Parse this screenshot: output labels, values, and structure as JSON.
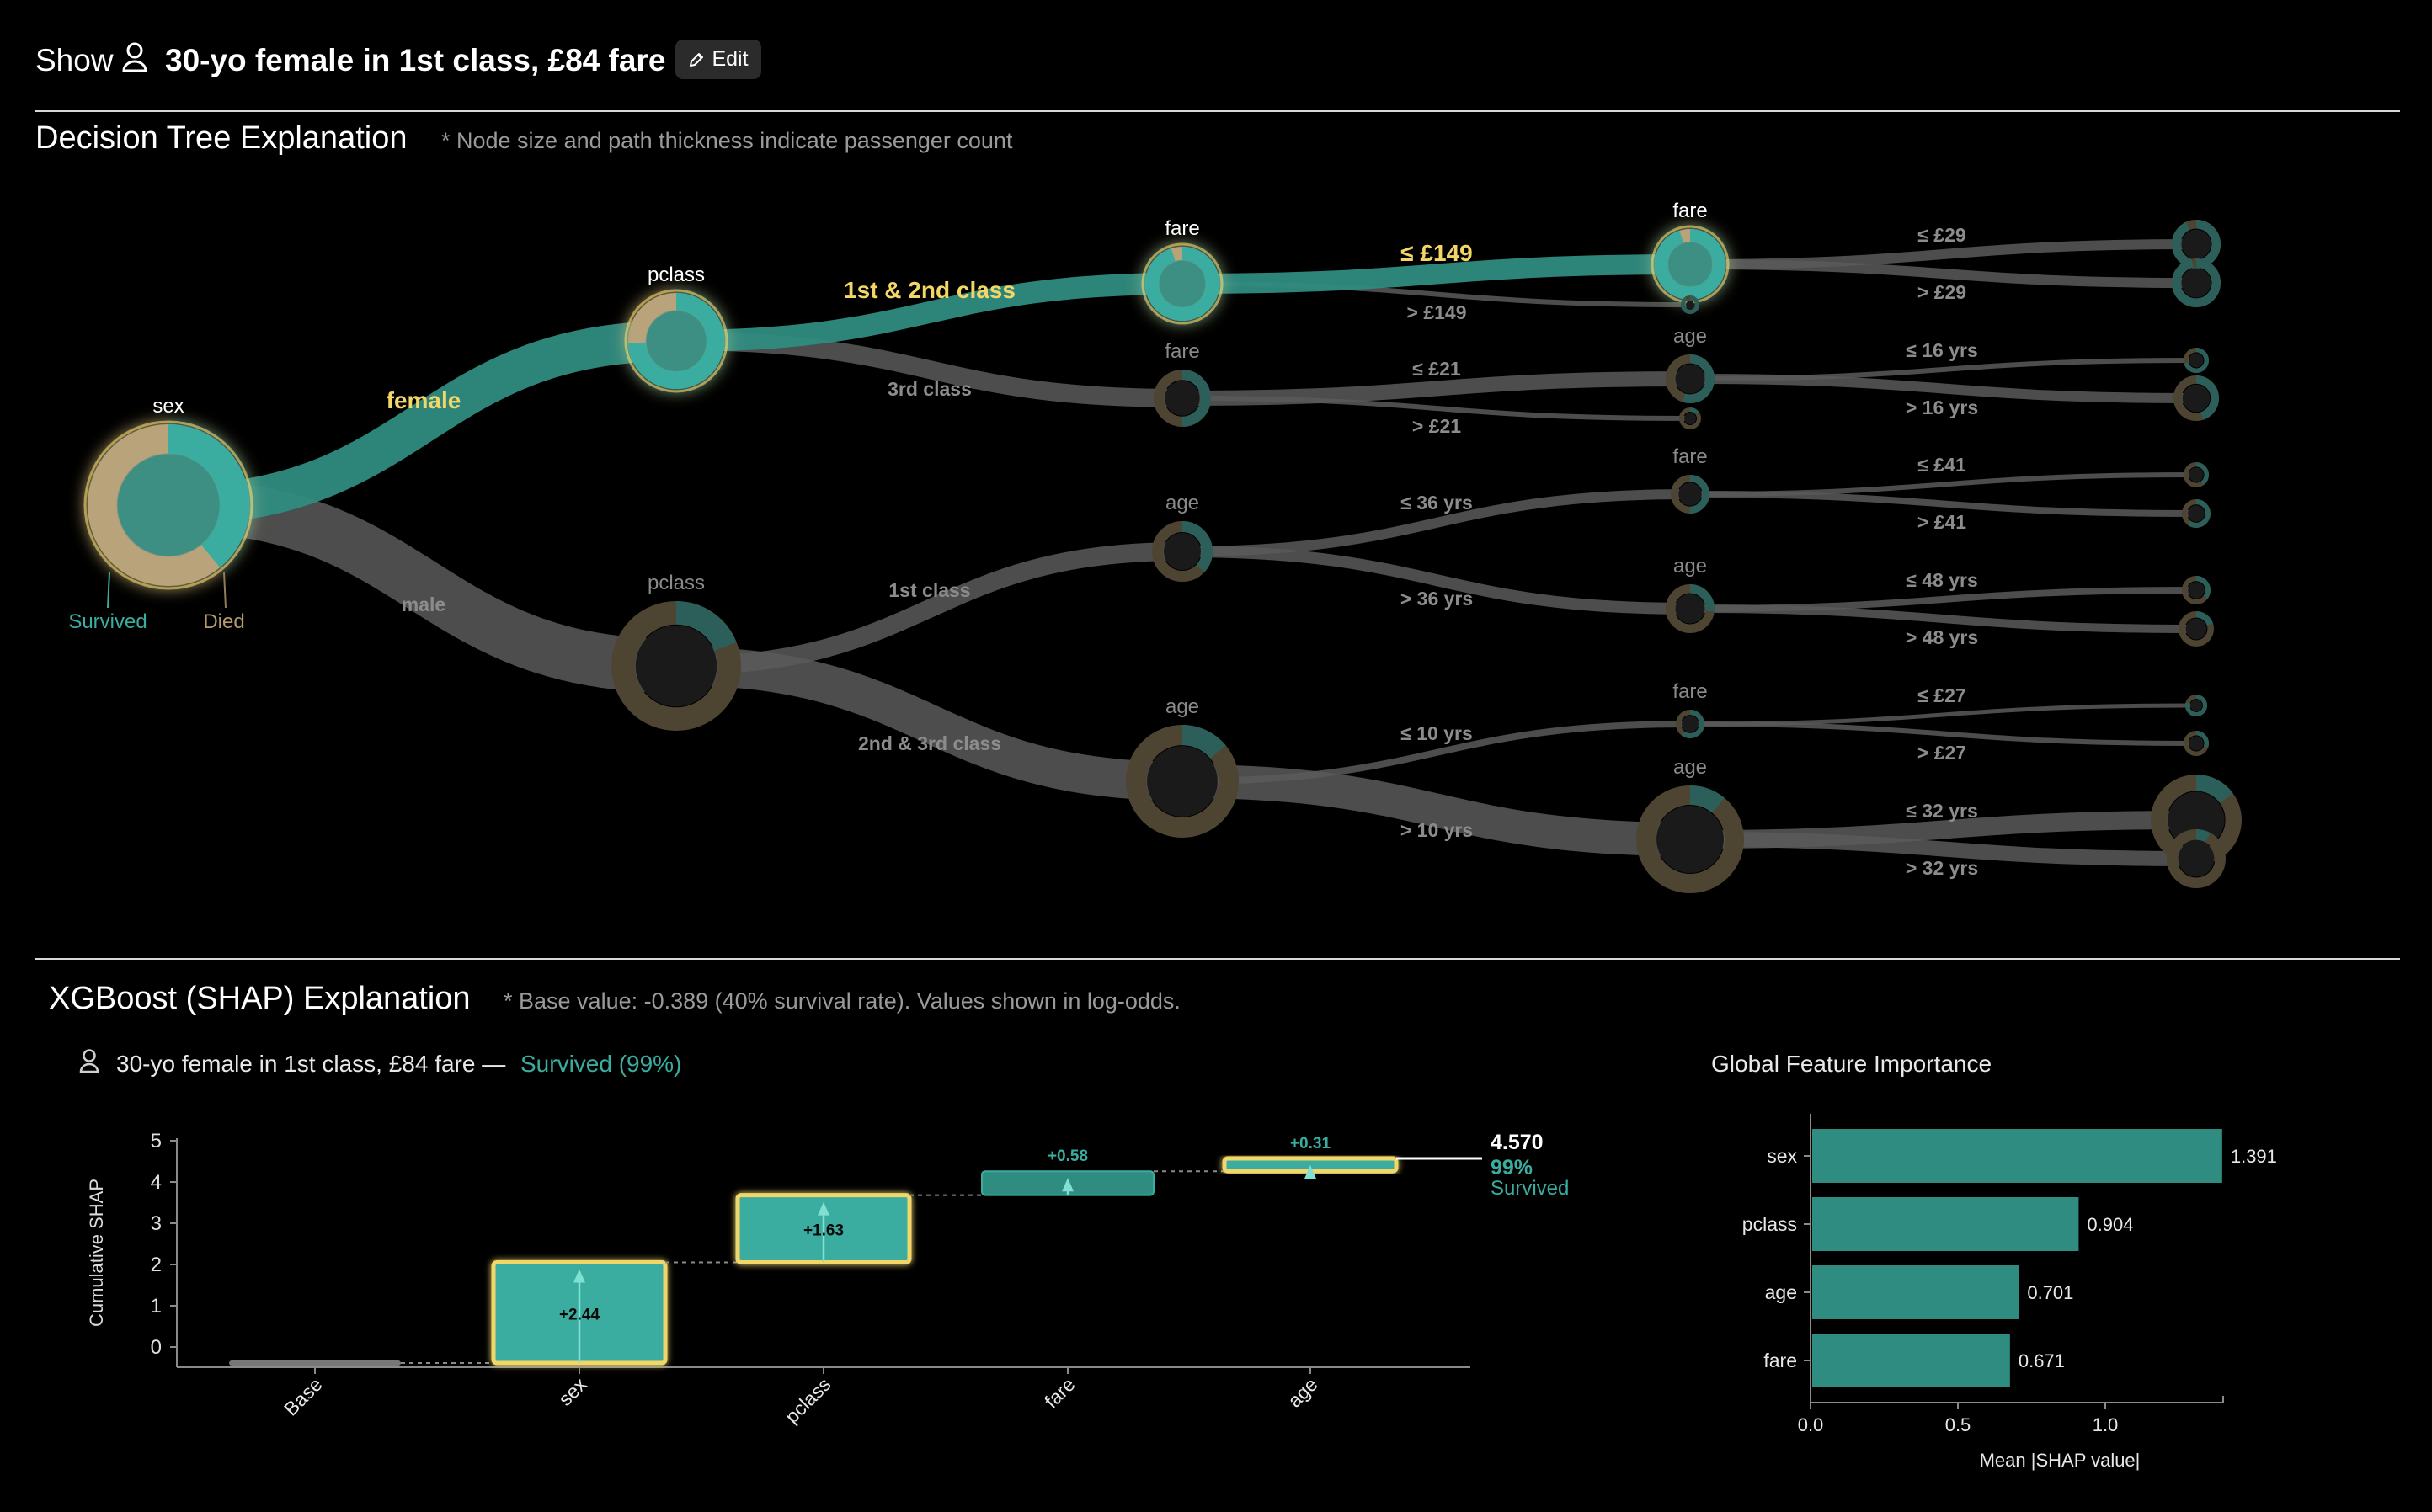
{
  "header": {
    "show_label": "Show",
    "passenger_label": "30-yo female in 1st class, £84 fare",
    "edit_label": "Edit"
  },
  "tree": {
    "title": "Decision Tree Explanation",
    "note": "* Node size and path thickness indicate passenger count",
    "legend": {
      "survived": "Survived",
      "died": "Died"
    }
  },
  "colors": {
    "survived": "#3aada0",
    "died": "#8f7c5c",
    "highlight": "#f2d768",
    "muted": "#5a5a5a",
    "background": "#000000"
  },
  "shap": {
    "title": "XGBoost (SHAP) Explanation",
    "note": "* Base value: -0.389 (40% survival rate). Values shown in log-odds.",
    "passenger_label": "30-yo female in 1st class, £84 fare —",
    "outcome": "Survived (99%)",
    "final_value": "4.570",
    "final_prob": "99%",
    "final_outcome": "Survived"
  },
  "chart_data": [
    {
      "type": "tree",
      "title": "Decision Tree Explanation",
      "nodes": [
        {
          "id": "root",
          "feature": "sex",
          "survived_share": 0.39,
          "highlighted": true
        },
        {
          "id": "n1",
          "feature": "pclass",
          "parent": "root",
          "edge_label": "female",
          "survived_share": 0.74,
          "highlighted": true
        },
        {
          "id": "n2",
          "feature": "pclass",
          "parent": "root",
          "edge_label": "male",
          "survived_share": 0.19
        },
        {
          "id": "n3",
          "feature": "fare",
          "parent": "n1",
          "edge_label": "1st & 2nd class",
          "survived_share": 0.95,
          "highlighted": true
        },
        {
          "id": "n4",
          "feature": "fare",
          "parent": "n1",
          "edge_label": "3rd class",
          "survived_share": 0.5
        },
        {
          "id": "n5",
          "feature": "age",
          "parent": "n2",
          "edge_label": "1st class",
          "survived_share": 0.37
        },
        {
          "id": "n6",
          "feature": "age",
          "parent": "n2",
          "edge_label": "2nd & 3rd class",
          "survived_share": 0.14
        },
        {
          "id": "n7",
          "feature": "fare",
          "parent": "n3",
          "edge_label": "≤ £149",
          "survived_share": 0.95,
          "highlighted": true
        },
        {
          "id": "n8",
          "parent": "n3",
          "edge_label": "> £149",
          "survived_share": 0.9
        },
        {
          "id": "n9",
          "feature": "age",
          "parent": "n4",
          "edge_label": "≤ £21",
          "survived_share": 0.55
        },
        {
          "id": "n10",
          "parent": "n4",
          "edge_label": "> £21",
          "survived_share": 0.15
        },
        {
          "id": "n11",
          "feature": "fare",
          "parent": "n5",
          "edge_label": "≤ 36 yrs",
          "survived_share": 0.5
        },
        {
          "id": "n12",
          "feature": "age",
          "parent": "n5",
          "edge_label": "> 36 yrs",
          "survived_share": 0.27
        },
        {
          "id": "n13",
          "feature": "fare",
          "parent": "n6",
          "edge_label": "≤ 10 yrs",
          "survived_share": 0.6
        },
        {
          "id": "n14",
          "feature": "age",
          "parent": "n6",
          "edge_label": "> 10 yrs",
          "survived_share": 0.11
        },
        {
          "id": "l1",
          "parent": "n7",
          "edge_label": "≤ £29",
          "survived_share": 0.93
        },
        {
          "id": "l2",
          "parent": "n7",
          "edge_label": "> £29",
          "survived_share": 0.97
        },
        {
          "id": "l3",
          "parent": "n9",
          "edge_label": "≤ 16 yrs",
          "survived_share": 0.7
        },
        {
          "id": "l4",
          "parent": "n9",
          "edge_label": "> 16 yrs",
          "survived_share": 0.45
        },
        {
          "id": "l5",
          "parent": "n11",
          "edge_label": "≤ £41",
          "survived_share": 0.4
        },
        {
          "id": "l6",
          "parent": "n11",
          "edge_label": "> £41",
          "survived_share": 0.6
        },
        {
          "id": "l7",
          "parent": "n12",
          "edge_label": "≤ 48 yrs",
          "survived_share": 0.35
        },
        {
          "id": "l8",
          "parent": "n12",
          "edge_label": "> 48 yrs",
          "survived_share": 0.2
        },
        {
          "id": "l9",
          "parent": "n13",
          "edge_label": "≤ £27",
          "survived_share": 0.8
        },
        {
          "id": "l10",
          "parent": "n13",
          "edge_label": "> £27",
          "survived_share": 0.3
        },
        {
          "id": "l11",
          "parent": "n14",
          "edge_label": "≤ 32 yrs",
          "survived_share": 0.15
        },
        {
          "id": "l12",
          "parent": "n14",
          "edge_label": "> 32 yrs",
          "survived_share": 0.08
        }
      ]
    },
    {
      "type": "bar",
      "subtype": "waterfall",
      "categories": [
        "Base",
        "sex",
        "pclass",
        "fare",
        "age"
      ],
      "base": -0.389,
      "contributions": [
        2.44,
        1.63,
        0.58,
        0.31
      ],
      "contribution_labels": [
        "+2.44",
        "+1.63",
        "+0.58",
        "+0.31"
      ],
      "highlighted": [
        false,
        true,
        true,
        false,
        true
      ],
      "ylabel": "Cumulative SHAP",
      "ylim": [
        -0.5,
        5
      ],
      "yticks": [
        0,
        1,
        2,
        3,
        4,
        5
      ],
      "final_value": 4.57
    },
    {
      "type": "bar",
      "orientation": "horizontal",
      "title": "Global Feature Importance",
      "categories": [
        "sex",
        "pclass",
        "age",
        "fare"
      ],
      "values": [
        1.391,
        0.904,
        0.701,
        0.671
      ],
      "value_labels": [
        "1.391",
        "0.904",
        "0.701",
        "0.671"
      ],
      "xlabel": "Mean |SHAP value|",
      "xlim": [
        0,
        1.4
      ],
      "xticks": [
        0.0,
        0.5,
        1.0
      ],
      "xtick_labels": [
        "0.0",
        "0.5",
        "1.0"
      ]
    }
  ]
}
